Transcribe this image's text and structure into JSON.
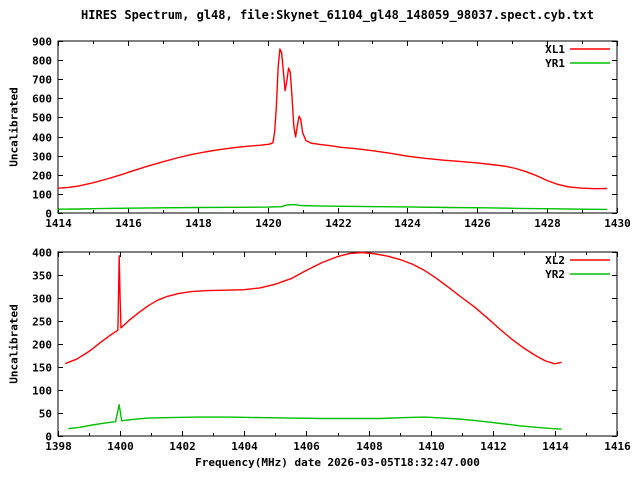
{
  "title": "HIRES Spectrum, gl48, file:Skynet_61104_gl48_148059_98037.spect.cyb.txt",
  "xlabel": "Frequency(MHz) date 2026-03-05T18:32:47.000",
  "colors": {
    "background": "#ffffff",
    "axis": "#000000",
    "xl_series": "#ff0000",
    "yr_series": "#00c000"
  },
  "chart_data": [
    {
      "type": "line",
      "name": "top-panel",
      "ylabel": "Uncalibrated",
      "xlim": [
        1414,
        1430
      ],
      "ylim": [
        0,
        900
      ],
      "x_major_step": 2,
      "x_minor_step": 1,
      "y_major_step": 100,
      "grid": false,
      "legend_position": "top-right",
      "x_tick_labels": [
        "1414",
        "1416",
        "1418",
        "1420",
        "1422",
        "1424",
        "1426",
        "1428",
        "1430"
      ],
      "y_tick_labels": [
        "0",
        "100",
        "200",
        "300",
        "400",
        "500",
        "600",
        "700",
        "800",
        "900"
      ],
      "series": [
        {
          "name": "XL1",
          "color": "#ff0000",
          "points": [
            [
              1414.0,
              130
            ],
            [
              1414.3,
              134
            ],
            [
              1414.6,
              142
            ],
            [
              1415.0,
              158
            ],
            [
              1415.4,
              178
            ],
            [
              1415.8,
              200
            ],
            [
              1416.2,
              224
            ],
            [
              1416.6,
              247
            ],
            [
              1417.0,
              268
            ],
            [
              1417.4,
              288
            ],
            [
              1417.8,
              305
            ],
            [
              1418.2,
              319
            ],
            [
              1418.6,
              331
            ],
            [
              1419.0,
              341
            ],
            [
              1419.4,
              349
            ],
            [
              1419.8,
              355
            ],
            [
              1420.05,
              360
            ],
            [
              1420.15,
              368
            ],
            [
              1420.2,
              420
            ],
            [
              1420.25,
              560
            ],
            [
              1420.3,
              760
            ],
            [
              1420.35,
              858
            ],
            [
              1420.4,
              840
            ],
            [
              1420.45,
              745
            ],
            [
              1420.5,
              640
            ],
            [
              1420.55,
              690
            ],
            [
              1420.6,
              758
            ],
            [
              1420.65,
              735
            ],
            [
              1420.7,
              600
            ],
            [
              1420.75,
              455
            ],
            [
              1420.8,
              398
            ],
            [
              1420.85,
              455
            ],
            [
              1420.9,
              507
            ],
            [
              1420.95,
              488
            ],
            [
              1421.0,
              420
            ],
            [
              1421.1,
              378
            ],
            [
              1421.25,
              365
            ],
            [
              1421.5,
              359
            ],
            [
              1421.8,
              352
            ],
            [
              1422.1,
              344
            ],
            [
              1422.5,
              337
            ],
            [
              1423.0,
              326
            ],
            [
              1423.5,
              313
            ],
            [
              1424.0,
              297
            ],
            [
              1424.5,
              286
            ],
            [
              1425.0,
              277
            ],
            [
              1425.5,
              270
            ],
            [
              1426.0,
              262
            ],
            [
              1426.4,
              254
            ],
            [
              1426.8,
              245
            ],
            [
              1427.1,
              233
            ],
            [
              1427.4,
              216
            ],
            [
              1427.7,
              195
            ],
            [
              1428.0,
              170
            ],
            [
              1428.3,
              150
            ],
            [
              1428.6,
              137
            ],
            [
              1429.0,
              130
            ],
            [
              1429.4,
              127
            ],
            [
              1429.7,
              128
            ]
          ]
        },
        {
          "name": "YR1",
          "color": "#00c000",
          "points": [
            [
              1414.0,
              20
            ],
            [
              1414.6,
              21
            ],
            [
              1415.2,
              23
            ],
            [
              1416.0,
              25
            ],
            [
              1417.0,
              27
            ],
            [
              1418.0,
              29
            ],
            [
              1419.0,
              30
            ],
            [
              1420.0,
              31
            ],
            [
              1420.4,
              33
            ],
            [
              1420.55,
              42
            ],
            [
              1420.75,
              44
            ],
            [
              1420.95,
              39
            ],
            [
              1421.4,
              37
            ],
            [
              1422.2,
              35
            ],
            [
              1423.2,
              33
            ],
            [
              1424.2,
              31
            ],
            [
              1425.2,
              29
            ],
            [
              1426.2,
              27
            ],
            [
              1427.2,
              24
            ],
            [
              1428.2,
              22
            ],
            [
              1429.0,
              20
            ],
            [
              1429.7,
              19
            ]
          ]
        }
      ]
    },
    {
      "type": "line",
      "name": "bottom-panel",
      "ylabel": "Uncalibrated",
      "xlim": [
        1398,
        1416
      ],
      "ylim": [
        0,
        400
      ],
      "x_major_step": 2,
      "x_minor_step": 1,
      "y_major_step": 50,
      "grid": false,
      "legend_position": "top-right",
      "x_tick_labels": [
        "1398",
        "1400",
        "1402",
        "1404",
        "1406",
        "1408",
        "1410",
        "1412",
        "1414",
        "1416"
      ],
      "y_tick_labels": [
        "0",
        "50",
        "100",
        "150",
        "200",
        "250",
        "300",
        "350",
        "400"
      ],
      "series": [
        {
          "name": "XL2",
          "color": "#ff0000",
          "points": [
            [
              1398.25,
              158
            ],
            [
              1398.6,
              167
            ],
            [
              1399.0,
              184
            ],
            [
              1399.4,
              205
            ],
            [
              1399.7,
              220
            ],
            [
              1399.93,
              230
            ],
            [
              1399.97,
              392
            ],
            [
              1400.0,
              300
            ],
            [
              1400.03,
              235
            ],
            [
              1400.3,
              252
            ],
            [
              1400.6,
              268
            ],
            [
              1400.9,
              283
            ],
            [
              1401.2,
              295
            ],
            [
              1401.5,
              303
            ],
            [
              1401.9,
              310
            ],
            [
              1402.3,
              314
            ],
            [
              1402.8,
              316
            ],
            [
              1403.4,
              317
            ],
            [
              1404.0,
              318
            ],
            [
              1404.5,
              322
            ],
            [
              1405.0,
              330
            ],
            [
              1405.5,
              342
            ],
            [
              1406.0,
              360
            ],
            [
              1406.5,
              377
            ],
            [
              1407.0,
              390
            ],
            [
              1407.4,
              397
            ],
            [
              1407.8,
              399
            ],
            [
              1408.2,
              396
            ],
            [
              1408.6,
              391
            ],
            [
              1409.0,
              384
            ],
            [
              1409.4,
              374
            ],
            [
              1409.8,
              360
            ],
            [
              1410.2,
              342
            ],
            [
              1410.6,
              322
            ],
            [
              1411.0,
              301
            ],
            [
              1411.4,
              281
            ],
            [
              1411.8,
              258
            ],
            [
              1412.2,
              234
            ],
            [
              1412.6,
              211
            ],
            [
              1413.0,
              191
            ],
            [
              1413.4,
              174
            ],
            [
              1413.7,
              163
            ],
            [
              1414.0,
              157
            ],
            [
              1414.2,
              160
            ]
          ]
        },
        {
          "name": "YR2",
          "color": "#00c000",
          "points": [
            [
              1398.35,
              16
            ],
            [
              1398.7,
              19
            ],
            [
              1399.1,
              24
            ],
            [
              1399.5,
              28
            ],
            [
              1399.85,
              31
            ],
            [
              1399.97,
              68
            ],
            [
              1400.05,
              33
            ],
            [
              1400.4,
              36
            ],
            [
              1400.9,
              39
            ],
            [
              1401.6,
              40
            ],
            [
              1402.5,
              41
            ],
            [
              1403.5,
              41
            ],
            [
              1404.5,
              40
            ],
            [
              1405.5,
              39
            ],
            [
              1406.5,
              38
            ],
            [
              1407.5,
              38
            ],
            [
              1408.4,
              38
            ],
            [
              1409.2,
              40
            ],
            [
              1409.8,
              41
            ],
            [
              1410.4,
              39
            ],
            [
              1410.9,
              37
            ],
            [
              1411.4,
              34
            ],
            [
              1411.9,
              30
            ],
            [
              1412.4,
              26
            ],
            [
              1412.9,
              22
            ],
            [
              1413.4,
              19
            ],
            [
              1413.9,
              16
            ],
            [
              1414.2,
              15
            ]
          ]
        }
      ]
    }
  ]
}
